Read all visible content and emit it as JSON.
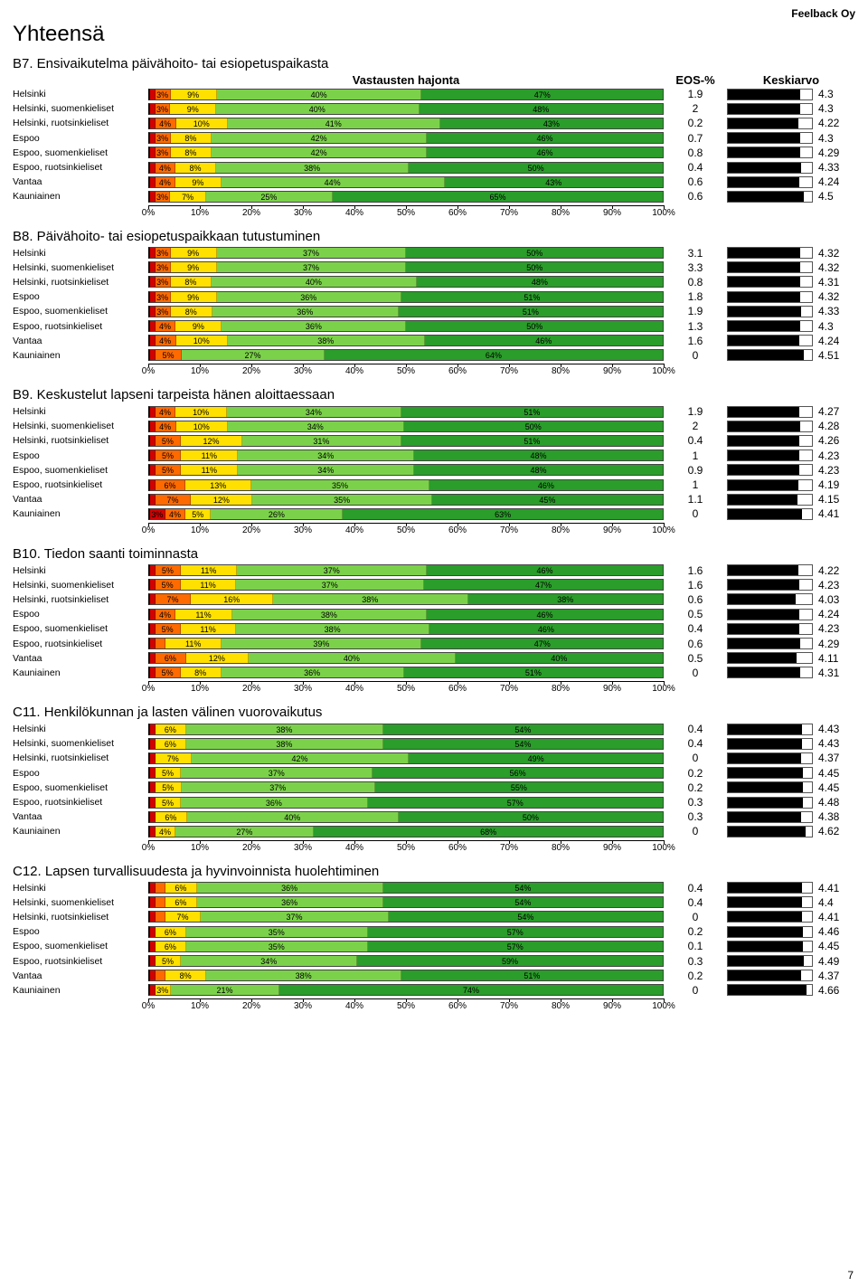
{
  "brand": "Feelback Oy",
  "page_title": "Yhteensä",
  "headers": {
    "hajonta": "Vastausten hajonta",
    "eos": "EOS-%",
    "keski": "Keskiarvo"
  },
  "seg_colors": [
    "#d40000",
    "#ff6a00",
    "#ffe000",
    "#7bd24a",
    "#2a9d2a"
  ],
  "avg_scale_max": 5,
  "axis_ticks": [
    "0%",
    "10%",
    "20%",
    "30%",
    "40%",
    "50%",
    "60%",
    "70%",
    "80%",
    "90%",
    "100%"
  ],
  "row_labels": [
    "Helsinki",
    "Helsinki, suomenkieliset",
    "Helsinki, ruotsinkieliset",
    "Espoo",
    "Espoo, suomenkieliset",
    "Espoo, ruotsinkieliset",
    "Vantaa",
    "Kauniainen"
  ],
  "questions": [
    {
      "title": "B7. Ensivaikutelma päivähoito- tai esiopetuspaikasta",
      "show_headers": true,
      "rows": [
        {
          "segs": [
            1,
            3,
            9,
            40,
            47
          ],
          "eos": "1.9",
          "avg": 4.3
        },
        {
          "segs": [
            1,
            3,
            9,
            40,
            48
          ],
          "eos": "2",
          "avg": 4.3
        },
        {
          "segs": [
            1,
            4,
            10,
            41,
            43
          ],
          "eos": "0.2",
          "avg": 4.22
        },
        {
          "segs": [
            1,
            3,
            8,
            42,
            46
          ],
          "eos": "0.7",
          "avg": 4.3
        },
        {
          "segs": [
            1,
            3,
            8,
            42,
            46
          ],
          "eos": "0.8",
          "avg": 4.29
        },
        {
          "segs": [
            1,
            4,
            8,
            38,
            50
          ],
          "eos": "0.4",
          "avg": 4.33
        },
        {
          "segs": [
            1,
            4,
            9,
            44,
            43
          ],
          "eos": "0.6",
          "avg": 4.24
        },
        {
          "segs": [
            1,
            3,
            7,
            25,
            65
          ],
          "eos": "0.6",
          "avg": 4.5
        }
      ]
    },
    {
      "title": "B8. Päivähoito- tai esiopetuspaikkaan tutustuminen",
      "rows": [
        {
          "segs": [
            1,
            3,
            9,
            37,
            50
          ],
          "eos": "3.1",
          "avg": 4.32
        },
        {
          "segs": [
            1,
            3,
            9,
            37,
            50
          ],
          "eos": "3.3",
          "avg": 4.32
        },
        {
          "segs": [
            1,
            3,
            8,
            40,
            48
          ],
          "eos": "0.8",
          "avg": 4.31
        },
        {
          "segs": [
            1,
            3,
            9,
            36,
            51
          ],
          "eos": "1.8",
          "avg": 4.32
        },
        {
          "segs": [
            1,
            3,
            8,
            36,
            51
          ],
          "eos": "1.9",
          "avg": 4.33
        },
        {
          "segs": [
            1,
            4,
            9,
            36,
            50
          ],
          "eos": "1.3",
          "avg": 4.3
        },
        {
          "segs": [
            1,
            4,
            10,
            38,
            46
          ],
          "eos": "1.6",
          "avg": 4.24
        },
        {
          "segs": [
            1,
            5,
            0,
            27,
            64
          ],
          "eos": "0",
          "avg": 4.51
        }
      ]
    },
    {
      "title": "B9. Keskustelut lapseni tarpeista hänen aloittaessaan",
      "rows": [
        {
          "segs": [
            1,
            4,
            10,
            34,
            51
          ],
          "eos": "1.9",
          "avg": 4.27
        },
        {
          "segs": [
            1,
            4,
            10,
            34,
            50
          ],
          "eos": "2",
          "avg": 4.28
        },
        {
          "segs": [
            1,
            5,
            12,
            31,
            51
          ],
          "eos": "0.4",
          "avg": 4.26
        },
        {
          "segs": [
            1,
            5,
            11,
            34,
            48
          ],
          "eos": "1",
          "avg": 4.23
        },
        {
          "segs": [
            1,
            5,
            11,
            34,
            48
          ],
          "eos": "0.9",
          "avg": 4.23
        },
        {
          "segs": [
            1,
            6,
            13,
            35,
            46
          ],
          "eos": "1",
          "avg": 4.19
        },
        {
          "segs": [
            1,
            7,
            12,
            35,
            45
          ],
          "eos": "1.1",
          "avg": 4.15
        },
        {
          "segs": [
            3,
            4,
            5,
            26,
            63
          ],
          "eos": "0",
          "avg": 4.41
        }
      ]
    },
    {
      "title": "B10. Tiedon saanti toiminnasta",
      "rows": [
        {
          "segs": [
            1,
            5,
            11,
            37,
            46
          ],
          "eos": "1.6",
          "avg": 4.22
        },
        {
          "segs": [
            1,
            5,
            11,
            37,
            47
          ],
          "eos": "1.6",
          "avg": 4.23
        },
        {
          "segs": [
            1,
            7,
            16,
            38,
            38
          ],
          "eos": "0.6",
          "avg": 4.03
        },
        {
          "segs": [
            1,
            4,
            11,
            38,
            46
          ],
          "eos": "0.5",
          "avg": 4.24
        },
        {
          "segs": [
            1,
            5,
            11,
            38,
            46
          ],
          "eos": "0.4",
          "avg": 4.23
        },
        {
          "segs": [
            1,
            2,
            11,
            39,
            47
          ],
          "eos": "0.6",
          "avg": 4.29
        },
        {
          "segs": [
            1,
            6,
            12,
            40,
            40
          ],
          "eos": "0.5",
          "avg": 4.11
        },
        {
          "segs": [
            1,
            5,
            8,
            36,
            51
          ],
          "eos": "0",
          "avg": 4.31
        }
      ]
    },
    {
      "title": "C11. Henkilökunnan ja lasten välinen vuorovaikutus",
      "rows": [
        {
          "segs": [
            1,
            0,
            6,
            38,
            54
          ],
          "eos": "0.4",
          "avg": 4.43
        },
        {
          "segs": [
            1,
            0,
            6,
            38,
            54
          ],
          "eos": "0.4",
          "avg": 4.43
        },
        {
          "segs": [
            1,
            0,
            7,
            42,
            49
          ],
          "eos": "0",
          "avg": 4.37
        },
        {
          "segs": [
            1,
            0,
            5,
            37,
            56
          ],
          "eos": "0.2",
          "avg": 4.45
        },
        {
          "segs": [
            1,
            0,
            5,
            37,
            55
          ],
          "eos": "0.2",
          "avg": 4.45
        },
        {
          "segs": [
            1,
            0,
            5,
            36,
            57
          ],
          "eos": "0.3",
          "avg": 4.48
        },
        {
          "segs": [
            1,
            0,
            6,
            40,
            50
          ],
          "eos": "0.3",
          "avg": 4.38
        },
        {
          "segs": [
            1,
            0,
            4,
            27,
            68
          ],
          "eos": "0",
          "avg": 4.62
        }
      ]
    },
    {
      "title": "C12. Lapsen turvallisuudesta ja hyvinvoinnista huolehtiminen",
      "rows": [
        {
          "segs": [
            1,
            2,
            6,
            36,
            54
          ],
          "eos": "0.4",
          "avg": 4.41
        },
        {
          "segs": [
            1,
            2,
            6,
            36,
            54
          ],
          "eos": "0.4",
          "avg": 4.4
        },
        {
          "segs": [
            1,
            2,
            7,
            37,
            54
          ],
          "eos": "0",
          "avg": 4.41
        },
        {
          "segs": [
            1,
            0,
            6,
            35,
            57
          ],
          "eos": "0.2",
          "avg": 4.46
        },
        {
          "segs": [
            1,
            0,
            6,
            35,
            57
          ],
          "eos": "0.1",
          "avg": 4.45
        },
        {
          "segs": [
            1,
            0,
            5,
            34,
            59
          ],
          "eos": "0.3",
          "avg": 4.49
        },
        {
          "segs": [
            1,
            2,
            8,
            38,
            51
          ],
          "eos": "0.2",
          "avg": 4.37
        },
        {
          "segs": [
            1,
            0,
            3,
            21,
            74
          ],
          "eos": "0",
          "avg": 4.66
        }
      ]
    }
  ],
  "page_number": "7"
}
